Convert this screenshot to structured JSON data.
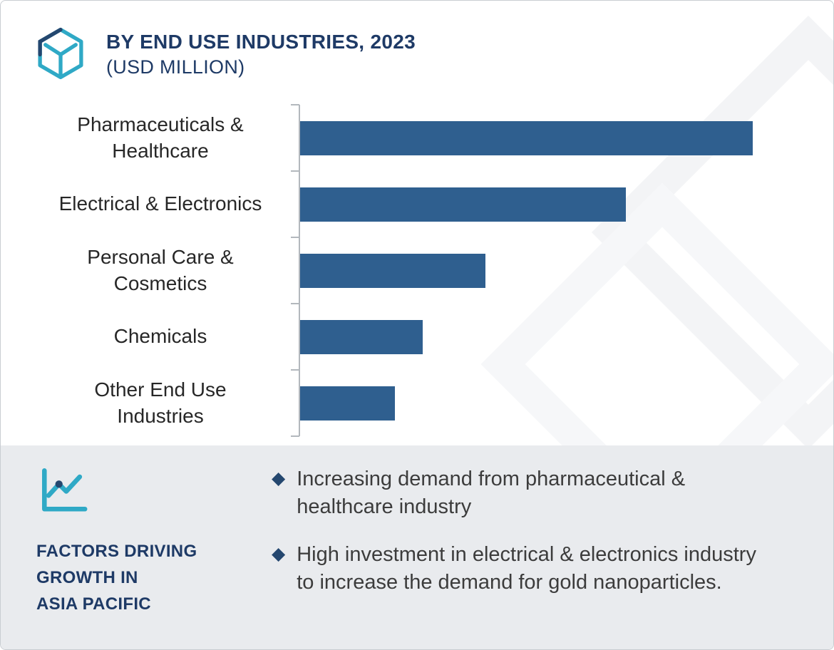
{
  "header": {
    "title": "BY END USE INDUSTRIES, 2023",
    "subtitle": "(USD MILLION)"
  },
  "chart_data": {
    "type": "bar",
    "orientation": "horizontal",
    "title": "BY END USE INDUSTRIES, 2023 (USD MILLION)",
    "xlabel": "",
    "ylabel": "",
    "categories": [
      "Pharmaceuticals & Healthcare",
      "Electrical & Electronics",
      "Personal Care & Cosmetics",
      "Chemicals",
      "Other End Use Industries"
    ],
    "label_lines": [
      [
        "Pharmaceuticals &",
        "Healthcare"
      ],
      [
        "Electrical & Electronics"
      ],
      [
        "Personal Care &",
        "Cosmetics"
      ],
      [
        "Chemicals"
      ],
      [
        "Other End Use",
        "Industries"
      ]
    ],
    "values": [
      100,
      72,
      41,
      27,
      21
    ],
    "values_are_relative_estimates": true,
    "xlim": [
      0,
      108
    ],
    "grid": false,
    "legend": false,
    "value_labels_shown": false,
    "bar_color": "#2f5f8f"
  },
  "footer": {
    "heading_lines": [
      "FACTORS DRIVING",
      "GROWTH IN",
      "ASIA PACIFIC"
    ],
    "bullets": [
      "Increasing demand from pharmaceutical & healthcare industry",
      "High investment in electrical & electronics industry to increase the demand for gold nanoparticles."
    ]
  },
  "icons": {
    "diamond_bullet": "◆",
    "logo": "hexagon-y-logo",
    "growth": "line-chart-growth"
  },
  "colors": {
    "bar": "#2f5f8f",
    "navy": "#1e3a66",
    "teal": "#2fa9c6",
    "footer_bg": "#e9ebee",
    "axis": "#b3b8bd"
  }
}
